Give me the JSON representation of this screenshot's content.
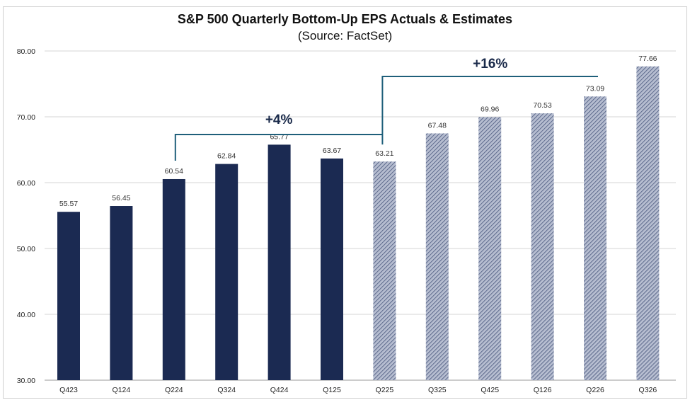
{
  "chart_data": {
    "type": "bar",
    "title": "S&P 500 Quarterly Bottom-Up EPS Actuals & Estimates",
    "subtitle": "(Source: FactSet)",
    "xlabel": "",
    "ylabel": "",
    "ylim": [
      30,
      80
    ],
    "yticks": [
      "30.00",
      "40.00",
      "50.00",
      "60.00",
      "70.00",
      "80.00"
    ],
    "grid": true,
    "categories": [
      "Q423",
      "Q124",
      "Q224",
      "Q324",
      "Q424",
      "Q125",
      "Q225",
      "Q325",
      "Q425",
      "Q126",
      "Q226",
      "Q326"
    ],
    "values": [
      55.57,
      56.45,
      60.54,
      62.84,
      65.77,
      63.67,
      63.21,
      67.48,
      69.96,
      70.53,
      73.09,
      77.66
    ],
    "value_labels": [
      "55.57",
      "56.45",
      "60.54",
      "62.84",
      "65.77",
      "63.67",
      "63.21",
      "67.48",
      "69.96",
      "70.53",
      "73.09",
      "77.66"
    ],
    "series_type": [
      "actual",
      "actual",
      "actual",
      "actual",
      "actual",
      "actual",
      "estimate",
      "estimate",
      "estimate",
      "estimate",
      "estimate",
      "estimate"
    ],
    "colors": {
      "actual": "#1b2a52",
      "estimate": "#8590ab",
      "bracket": "#1f5f7a"
    },
    "annotations": [
      {
        "text": "+4%",
        "from": "Q224",
        "to": "Q225"
      },
      {
        "text": "+16%",
        "from": "Q225",
        "to": "Q226"
      }
    ]
  }
}
